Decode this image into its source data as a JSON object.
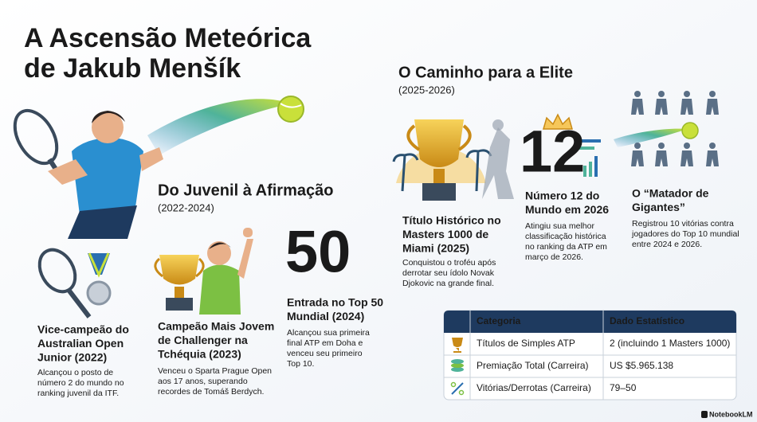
{
  "title": {
    "lines": [
      "A Ascensão Meteórica",
      "de Jakub Menšík"
    ]
  },
  "sections": [
    {
      "title": "Do Juvenil à Afirmação",
      "period": "(2022-2024)",
      "items": [
        {
          "heading": [
            "Vice-campeão do",
            "Australian Open",
            "Junior (2022)"
          ],
          "text": [
            "Alcançou o posto de",
            "número 2 do mundo no",
            "ranking juvenil da ITF."
          ]
        },
        {
          "heading": [
            "Campeão Mais Jovem",
            "de Challenger na",
            "Tchéquia (2023)"
          ],
          "text": [
            "Venceu o Sparta Prague Open",
            "aos 17 anos, superando",
            "recordes de Tomáš Berdych."
          ]
        },
        {
          "big": "50",
          "heading": [
            "Entrada no Top 50",
            "Mundial (2024)"
          ],
          "text": [
            "Alcançou sua primeira",
            "final ATP em Doha e",
            "venceu seu primeiro",
            "Top 10."
          ]
        }
      ]
    },
    {
      "title": "O Caminho para a Elite",
      "period": "(2025-2026)",
      "items": [
        {
          "heading": [
            "Título Histórico no",
            "Masters 1000 de",
            "Miami (2025)"
          ],
          "text": [
            "Conquistou o troféu após",
            "derrotar seu ídolo Novak",
            "Djokovic na grande final."
          ]
        },
        {
          "big": "12",
          "heading": [
            "Número 12 do",
            "Mundo em 2026"
          ],
          "text": [
            "Atingiu sua melhor",
            "classificação histórica",
            "no ranking da ATP em",
            "março de 2026."
          ]
        },
        {
          "heading": [
            "O “Matador de",
            "Gigantes”"
          ],
          "text": [
            "Registrou 10 vitórias contra",
            "jogadores do Top 10 mundial",
            "entre 2024 e 2026."
          ]
        }
      ]
    }
  ],
  "table": {
    "headers": [
      "Categoria",
      "Dado Estatístico"
    ],
    "rows": [
      [
        "Títulos de Simples ATP",
        "2 (incluindo 1 Masters 1000)"
      ],
      [
        "Premiação Total (Carreira)",
        "US $5.965.138"
      ],
      [
        "Vitórias/Derrotas (Carreira)",
        "79–50"
      ]
    ]
  },
  "footer": "NotebookLM"
}
